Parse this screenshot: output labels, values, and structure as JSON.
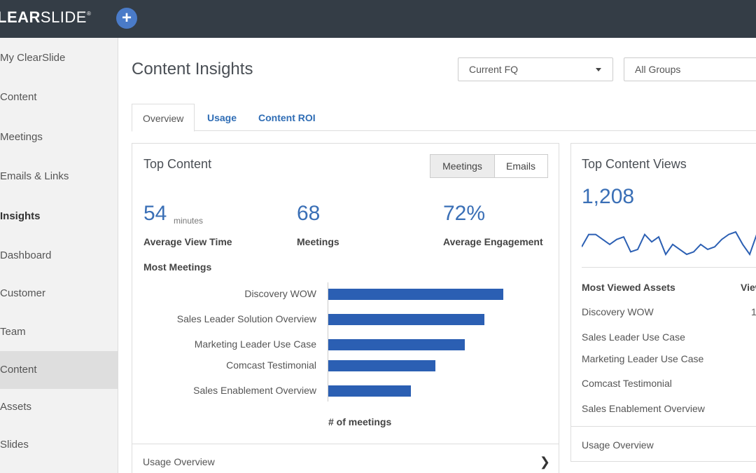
{
  "header": {
    "logo_bold": "LEAR",
    "logo_light": "SLIDE",
    "logo_tm": "®",
    "add_icon": "plus-icon"
  },
  "sidebar": {
    "items": [
      {
        "label": "My ClearSlide"
      },
      {
        "label": "Content"
      },
      {
        "label": "Meetings"
      },
      {
        "label": "Emails & Links"
      },
      {
        "label": "Insights"
      },
      {
        "label": "Dashboard"
      },
      {
        "label": "Customer"
      },
      {
        "label": "Team"
      },
      {
        "label": "Content"
      },
      {
        "label": "Assets"
      },
      {
        "label": "Slides"
      }
    ]
  },
  "page": {
    "title": "Content Insights",
    "period_select": "Current FQ",
    "group_select": "All Groups"
  },
  "tabs": [
    {
      "label": "Overview"
    },
    {
      "label": "Usage"
    },
    {
      "label": "Content ROI"
    }
  ],
  "top_content": {
    "title": "Top Content",
    "toggle_meetings": "Meetings",
    "toggle_emails": "Emails",
    "stats": [
      {
        "value": "54",
        "unit": "minutes",
        "label": "Average View Time"
      },
      {
        "value": "68",
        "unit": "",
        "label": "Meetings"
      },
      {
        "value": "72%",
        "unit": "",
        "label": "Average Engagement"
      }
    ],
    "chart_title": "Most Meetings",
    "footer": "Usage Overview"
  },
  "chart_data": {
    "type": "bar",
    "orientation": "horizontal",
    "title": "Most Meetings",
    "categories": [
      "Discovery WOW",
      "Sales Leader Solution Overview",
      "Marketing Leader Use Case",
      "Comcast Testimonial",
      "Sales Enablement Overview"
    ],
    "values": [
      100,
      89,
      78,
      61,
      47
    ],
    "xlabel": "# of meetings",
    "ylabel": "",
    "grid": false,
    "legend": "none"
  },
  "top_views": {
    "title": "Top Content Views",
    "total": "1,208",
    "sparkline": [
      6,
      16,
      16,
      12,
      8,
      12,
      14,
      2,
      4,
      16,
      10,
      14,
      0,
      8,
      4,
      0,
      2,
      8,
      4,
      6,
      12,
      16,
      18,
      8,
      0,
      16,
      10
    ],
    "col_assets": "Most Viewed Assets",
    "col_views": "Views",
    "assets": [
      {
        "name": "Discovery WOW",
        "views": "1"
      },
      {
        "name": "Sales Leader Use Case",
        "views": ""
      },
      {
        "name": "Marketing Leader Use Case",
        "views": ""
      },
      {
        "name": "Comcast Testimonial",
        "views": ""
      },
      {
        "name": "Sales Enablement Overview",
        "views": ""
      }
    ],
    "footer": "Usage Overview"
  },
  "colors": {
    "topbar": "#343d46",
    "accent": "#2b5fb3",
    "link": "#2f6db5"
  }
}
